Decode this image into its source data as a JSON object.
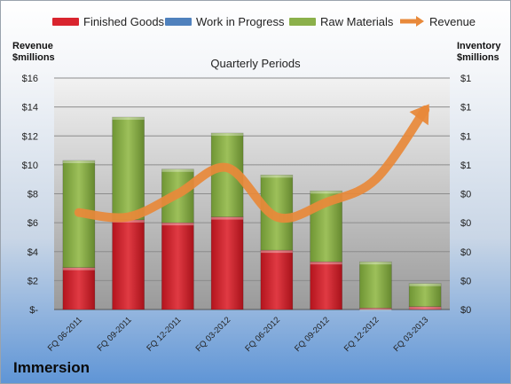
{
  "legend": {
    "finished": "Finished Goods",
    "wip": "Work in Progress",
    "raw": "Raw Materials",
    "revenue": "Revenue"
  },
  "left_axis_title": [
    "Revenue",
    "$millions"
  ],
  "right_axis_title": [
    "Inventory",
    "$millions"
  ],
  "subtitle": "Quarterly Periods",
  "company": "Immersion",
  "colors": {
    "finished": "#d9242e",
    "wip": "#4f81bd",
    "raw": "#8bb04a",
    "revenue": "#e8893a"
  },
  "chart_data": {
    "type": "bar",
    "stacked": true,
    "categories": [
      "FQ 06-2011",
      "FQ 09-2011",
      "FQ 12-2011",
      "FQ 03-2012",
      "FQ 06-2012",
      "FQ 09-2012",
      "FQ 12-2012",
      "FQ 03-2013"
    ],
    "series": [
      {
        "name": "Finished Goods",
        "values": [
          2.9,
          6.2,
          6.0,
          6.4,
          4.1,
          3.3,
          0.1,
          0.2
        ]
      },
      {
        "name": "Work in Progress",
        "values": [
          0,
          0,
          0,
          0,
          0,
          0,
          0,
          0
        ]
      },
      {
        "name": "Raw Materials",
        "values": [
          7.4,
          7.1,
          3.7,
          5.8,
          5.2,
          4.9,
          3.2,
          1.6
        ]
      }
    ],
    "line_series": {
      "name": "Revenue",
      "values": [
        6.7,
        6.4,
        8.0,
        9.8,
        6.4,
        7.4,
        9.0,
        13.8
      ]
    },
    "left_ticks": [
      "$16",
      "$14",
      "$12",
      "$10",
      "$8",
      "$6",
      "$4",
      "$2",
      "$-"
    ],
    "right_ticks": [
      "$1",
      "$1",
      "$1",
      "$1",
      "$0",
      "$0",
      "$0",
      "$0",
      "$0"
    ],
    "ylim": [
      0,
      16
    ],
    "grid": true,
    "legend_position": "top"
  }
}
